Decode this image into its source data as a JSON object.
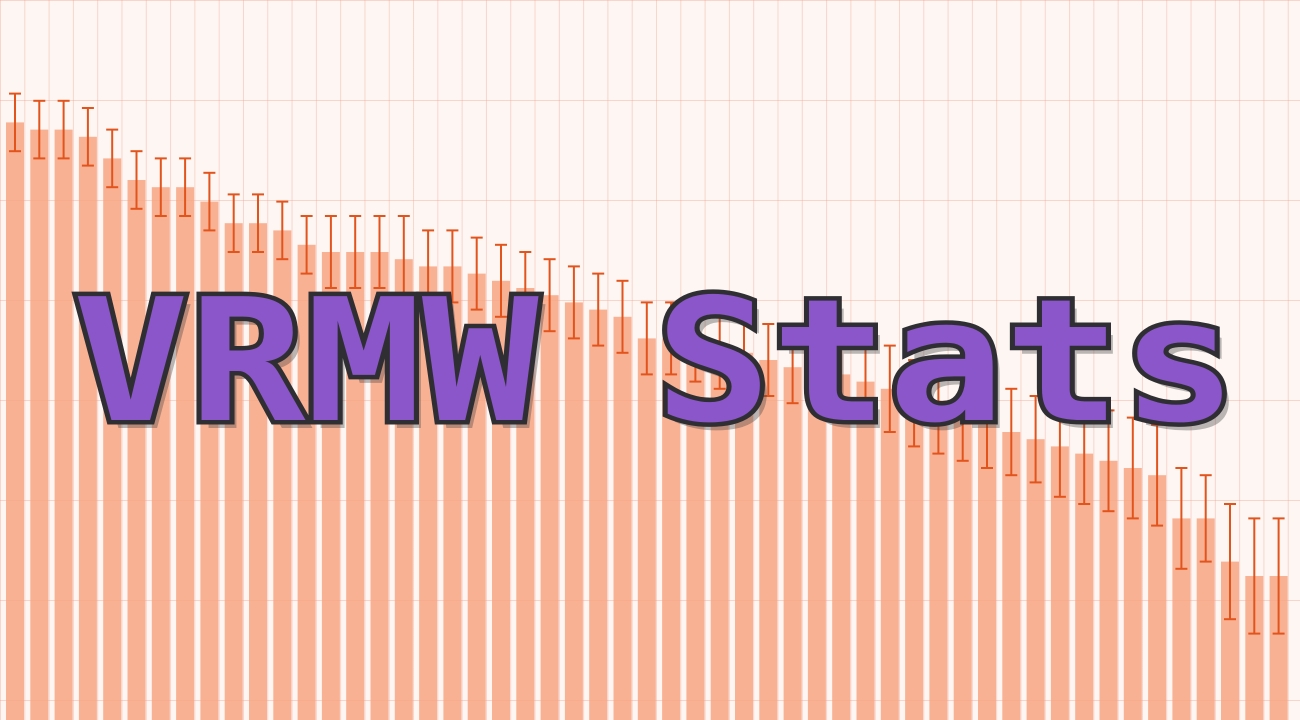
{
  "chart_data": {
    "type": "bar",
    "title": "VRMW Stats",
    "values": [
      83,
      82,
      82,
      81,
      78,
      75,
      74,
      74,
      72,
      69,
      69,
      68,
      66,
      65,
      65,
      65,
      64,
      63,
      63,
      62,
      61,
      60,
      59,
      58,
      57,
      56,
      53,
      53,
      52,
      51,
      51,
      50,
      49,
      49,
      48,
      47,
      46,
      44,
      43,
      42,
      41,
      40,
      39,
      38,
      37,
      36,
      35,
      34,
      28,
      28,
      22,
      20,
      20
    ],
    "errors": [
      4,
      4,
      4,
      4,
      4,
      4,
      4,
      4,
      4,
      4,
      4,
      4,
      4,
      5,
      5,
      5,
      6,
      5,
      5,
      5,
      5,
      5,
      5,
      5,
      5,
      5,
      5,
      5,
      5,
      5,
      5,
      5,
      5,
      5,
      5,
      5,
      6,
      6,
      6,
      6,
      6,
      6,
      6,
      7,
      7,
      7,
      7,
      7,
      7,
      6,
      8,
      8,
      8
    ],
    "color": "#f8a582",
    "error_color": "#e2541c",
    "ylim": [
      0,
      100
    ]
  }
}
